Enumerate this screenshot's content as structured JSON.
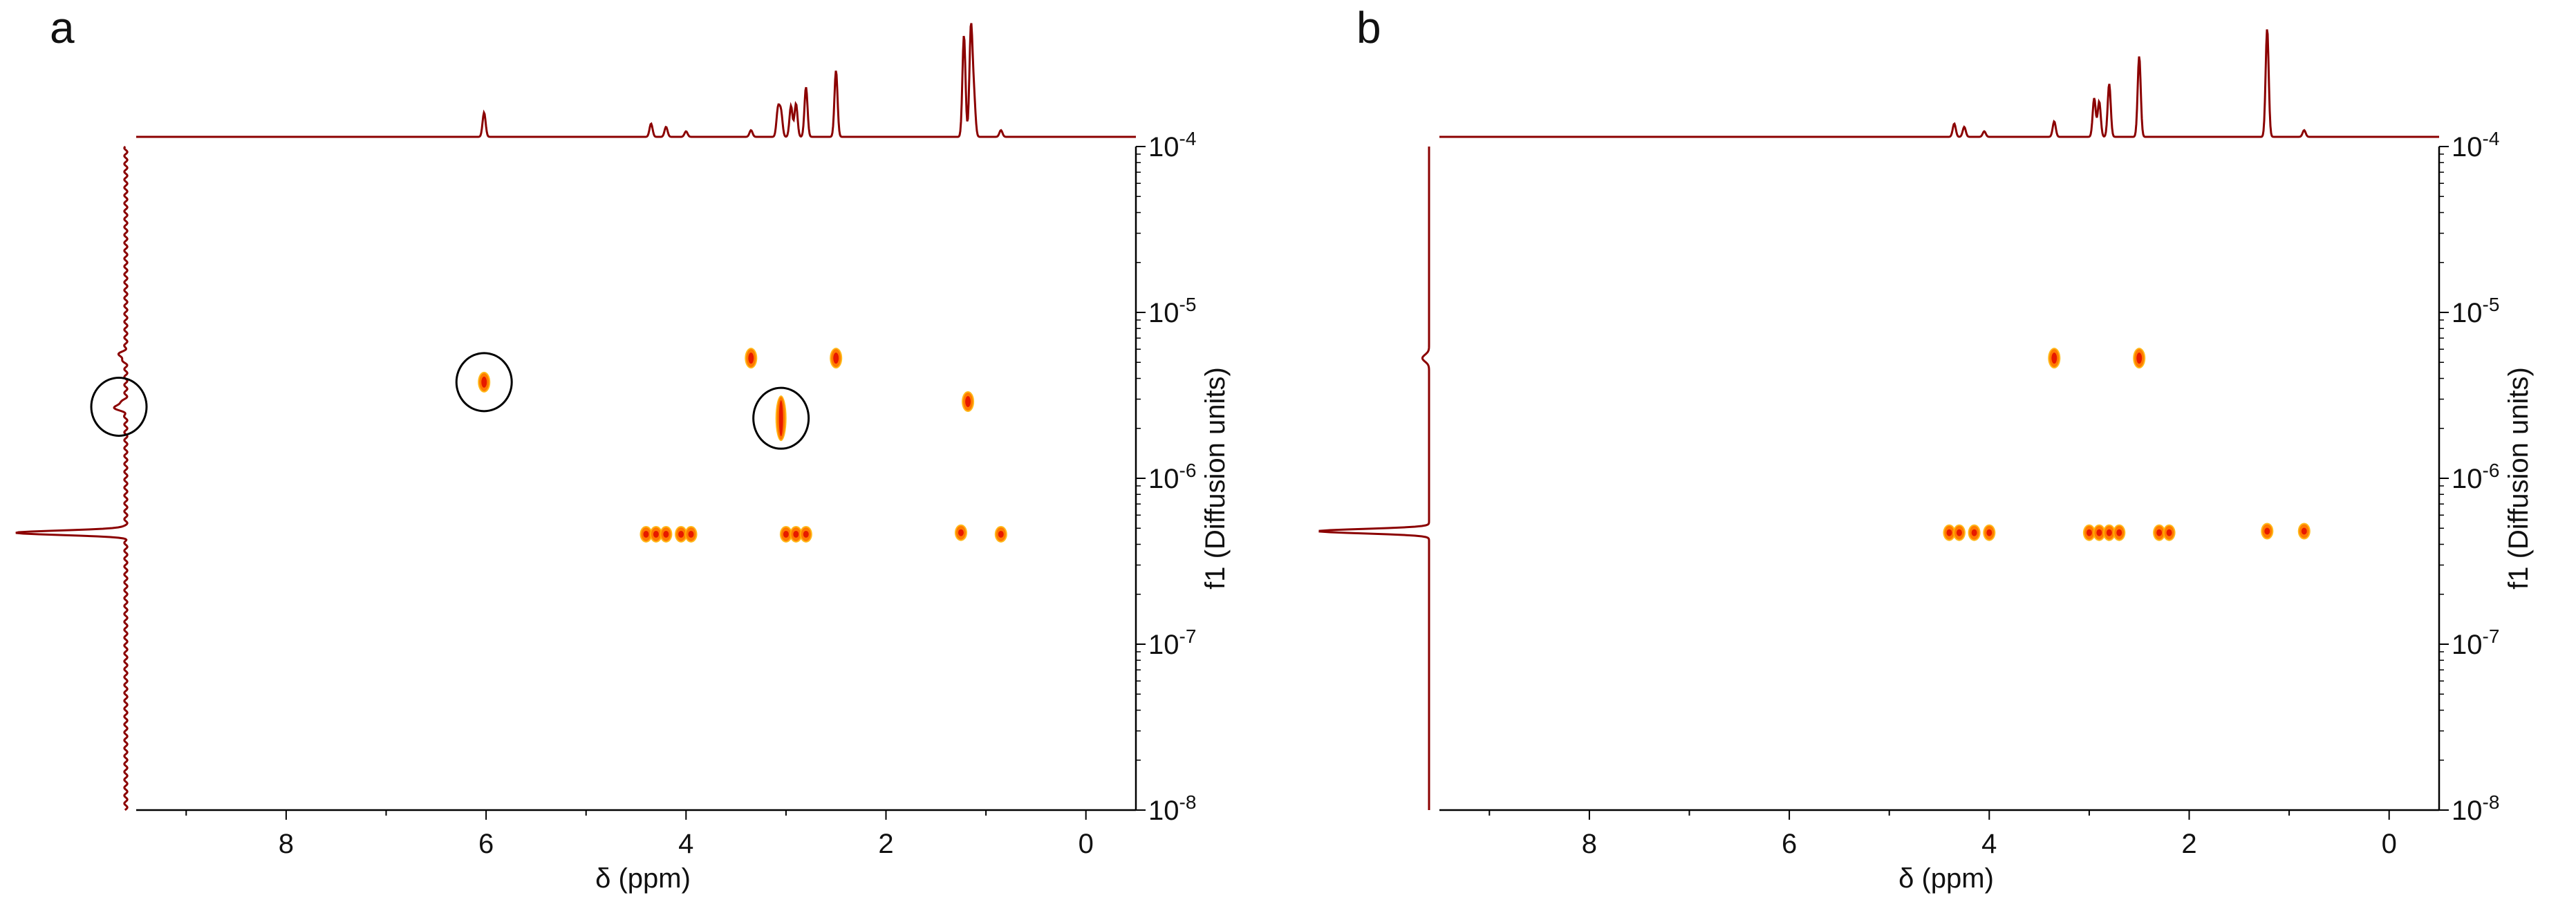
{
  "figure": {
    "colors": {
      "trace": "#8b0000",
      "axis": "#000000",
      "peak_core": "#e61a00",
      "peak_mid": "#ff7a00",
      "peak_edge": "#ffb000"
    }
  },
  "chart_data": [
    {
      "type": "scatter",
      "panel_label": "a",
      "xlabel": "δ (ppm)",
      "ylabel": "f1 (Diffusion units)",
      "x_ticks": [
        "8",
        "6",
        "4",
        "2",
        "0"
      ],
      "y_ticks": [
        "10-4",
        "10-5",
        "10-6",
        "10-7",
        "10-8"
      ],
      "xlim": [
        9.5,
        -0.5
      ],
      "ylim": [
        1e-08,
        0.0001
      ],
      "y_scale": "log",
      "x_reversed": true,
      "grid": false,
      "peaks": [
        {
          "x": 6.02,
          "y": 3.8e-06,
          "label": "",
          "circled": true
        },
        {
          "x": 3.35,
          "y": 5.3e-06
        },
        {
          "x": 2.5,
          "y": 5.3e-06
        },
        {
          "x": 3.05,
          "y": 2.3e-06,
          "circled": true
        },
        {
          "x": 1.18,
          "y": 2.9e-06
        },
        {
          "x": 4.4,
          "y": 4.6e-07
        },
        {
          "x": 4.3,
          "y": 4.6e-07
        },
        {
          "x": 4.2,
          "y": 4.6e-07
        },
        {
          "x": 4.05,
          "y": 4.6e-07
        },
        {
          "x": 3.95,
          "y": 4.6e-07
        },
        {
          "x": 3.0,
          "y": 4.6e-07
        },
        {
          "x": 2.9,
          "y": 4.6e-07
        },
        {
          "x": 2.8,
          "y": 4.6e-07
        },
        {
          "x": 1.25,
          "y": 4.7e-07
        },
        {
          "x": 0.85,
          "y": 4.6e-07
        }
      ],
      "top_projection_peaks": [
        {
          "x": 6.02,
          "h": 0.22
        },
        {
          "x": 4.35,
          "h": 0.12
        },
        {
          "x": 4.2,
          "h": 0.09
        },
        {
          "x": 4.0,
          "h": 0.05
        },
        {
          "x": 3.35,
          "h": 0.06
        },
        {
          "x": 3.08,
          "h": 0.25
        },
        {
          "x": 3.05,
          "h": 0.22
        },
        {
          "x": 2.95,
          "h": 0.28
        },
        {
          "x": 2.9,
          "h": 0.3
        },
        {
          "x": 2.8,
          "h": 0.45
        },
        {
          "x": 2.5,
          "h": 0.6
        },
        {
          "x": 1.22,
          "h": 0.92
        },
        {
          "x": 1.15,
          "h": 0.98
        },
        {
          "x": 1.12,
          "h": 0.35
        },
        {
          "x": 0.85,
          "h": 0.06
        }
      ],
      "side_projection_peaks": [
        {
          "y": 5.5e-06,
          "h": 0.06
        },
        {
          "y": 2.7e-06,
          "h": 0.1,
          "circled": true
        },
        {
          "y": 4.7e-07,
          "h": 1.0
        }
      ],
      "side_ripple": true
    },
    {
      "type": "scatter",
      "panel_label": "b",
      "xlabel": "δ (ppm)",
      "ylabel": "f1 (Diffusion units)",
      "x_ticks": [
        "8",
        "6",
        "4",
        "2",
        "0"
      ],
      "y_ticks": [
        "10-4",
        "10-5",
        "10-6",
        "10-7",
        "10-8"
      ],
      "xlim": [
        9.5,
        -0.5
      ],
      "ylim": [
        1e-08,
        0.0001
      ],
      "y_scale": "log",
      "x_reversed": true,
      "grid": false,
      "peaks": [
        {
          "x": 3.35,
          "y": 5.3e-06
        },
        {
          "x": 2.5,
          "y": 5.3e-06
        },
        {
          "x": 4.4,
          "y": 4.7e-07
        },
        {
          "x": 4.3,
          "y": 4.7e-07
        },
        {
          "x": 4.15,
          "y": 4.7e-07
        },
        {
          "x": 4.0,
          "y": 4.7e-07
        },
        {
          "x": 3.0,
          "y": 4.7e-07
        },
        {
          "x": 2.9,
          "y": 4.7e-07
        },
        {
          "x": 2.8,
          "y": 4.7e-07
        },
        {
          "x": 2.7,
          "y": 4.7e-07
        },
        {
          "x": 2.3,
          "y": 4.7e-07
        },
        {
          "x": 2.2,
          "y": 4.7e-07
        },
        {
          "x": 1.22,
          "y": 4.8e-07
        },
        {
          "x": 0.85,
          "y": 4.8e-07
        }
      ],
      "top_projection_peaks": [
        {
          "x": 4.35,
          "h": 0.12
        },
        {
          "x": 4.25,
          "h": 0.09
        },
        {
          "x": 4.05,
          "h": 0.05
        },
        {
          "x": 3.35,
          "h": 0.14
        },
        {
          "x": 2.95,
          "h": 0.35
        },
        {
          "x": 2.9,
          "h": 0.32
        },
        {
          "x": 2.8,
          "h": 0.48
        },
        {
          "x": 2.5,
          "h": 0.73
        },
        {
          "x": 1.22,
          "h": 0.98
        },
        {
          "x": 0.85,
          "h": 0.06
        }
      ],
      "side_projection_peaks": [
        {
          "y": 5.3e-06,
          "h": 0.06
        },
        {
          "y": 4.8e-07,
          "h": 1.0
        }
      ],
      "side_ripple": false
    }
  ]
}
